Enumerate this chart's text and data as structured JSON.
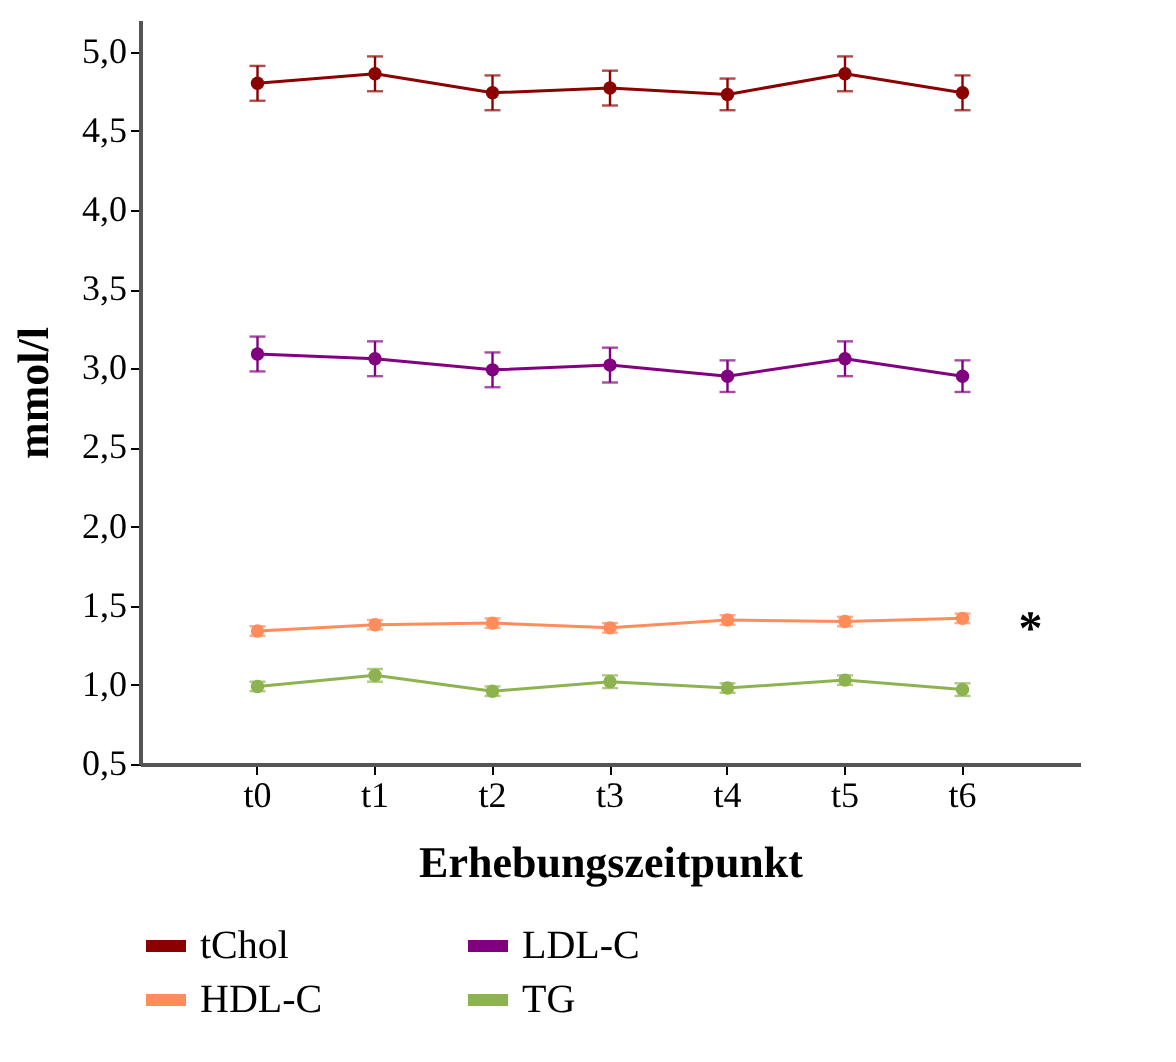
{
  "chart_data": {
    "type": "line",
    "xlabel": "Erhebungszeitpunkt",
    "ylabel": "mmol/l",
    "categories": [
      "t0",
      "t1",
      "t2",
      "t3",
      "t4",
      "t5",
      "t6"
    ],
    "series": [
      {
        "name": "tChol",
        "color": "#8b0000",
        "values": [
          4.8,
          4.86,
          4.74,
          4.77,
          4.73,
          4.86,
          4.74
        ],
        "errors": [
          0.11,
          0.11,
          0.11,
          0.11,
          0.1,
          0.11,
          0.11
        ]
      },
      {
        "name": "LDL-C",
        "color": "#800080",
        "values": [
          3.09,
          3.06,
          2.99,
          3.02,
          2.95,
          3.06,
          2.95
        ],
        "errors": [
          0.11,
          0.11,
          0.11,
          0.11,
          0.1,
          0.11,
          0.1
        ]
      },
      {
        "name": "HDL-C",
        "color": "#ff8c5a",
        "values": [
          1.34,
          1.38,
          1.39,
          1.36,
          1.41,
          1.4,
          1.42
        ],
        "errors": [
          0.03,
          0.03,
          0.03,
          0.03,
          0.03,
          0.03,
          0.03
        ]
      },
      {
        "name": "TG",
        "color": "#8db350",
        "values": [
          0.99,
          1.06,
          0.96,
          1.02,
          0.98,
          1.03,
          0.97
        ],
        "errors": [
          0.03,
          0.04,
          0.03,
          0.04,
          0.03,
          0.03,
          0.04
        ]
      }
    ],
    "ylim": [
      0.5,
      5.2
    ],
    "yticks": [
      {
        "value": 0.5,
        "label": "0,5"
      },
      {
        "value": 1.0,
        "label": "1,0"
      },
      {
        "value": 1.5,
        "label": "1,5"
      },
      {
        "value": 2.0,
        "label": "2,0"
      },
      {
        "value": 2.5,
        "label": "2,5"
      },
      {
        "value": 3.0,
        "label": "3,0"
      },
      {
        "value": 3.5,
        "label": "3,5"
      },
      {
        "value": 4.0,
        "label": "4,0"
      },
      {
        "value": 4.5,
        "label": "4,5"
      },
      {
        "value": 5.0,
        "label": "5,0"
      }
    ],
    "annotations": [
      {
        "text": "*",
        "x": "t6",
        "y": 1.42
      }
    ],
    "legend": "bottom",
    "grid": false,
    "marker": "circle",
    "line_style": "solid"
  }
}
